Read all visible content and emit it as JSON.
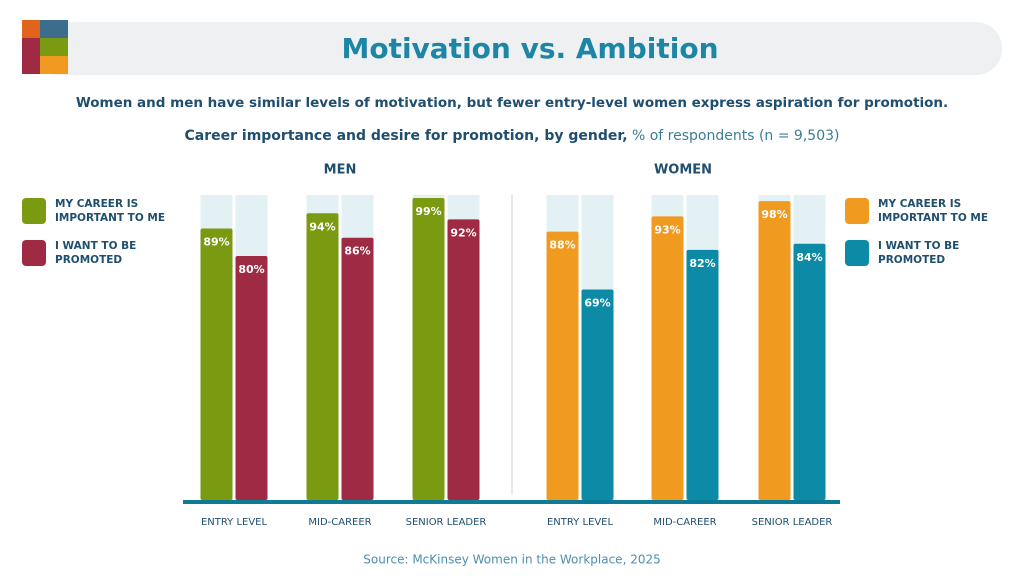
{
  "title": "Motivation vs. Ambition",
  "subtitle": "Women and men have similar levels of motivation, but fewer entry-level women express aspiration for promotion.",
  "caption": {
    "main": "Career importance and desire for promotion, by gender,",
    "sub": "% of respondents (n = 9,503)"
  },
  "source": "Source: McKinsey Women in the Workplace, 2025",
  "chart_data": [
    {
      "type": "bar",
      "title": "MEN",
      "legend": "left",
      "categories": [
        "ENTRY LEVEL",
        "MID-CAREER",
        "SENIOR LEADER"
      ],
      "ylim": [
        0,
        100
      ],
      "series": [
        {
          "name": "MY CAREER IS IMPORTANT TO ME",
          "color": "#7a9a12",
          "values": [
            89,
            94,
            99
          ],
          "value_labels": [
            "89%",
            "94%",
            "99%"
          ]
        },
        {
          "name": "I WANT TO BE PROMOTED",
          "color": "#9e2a43",
          "values": [
            80,
            86,
            92
          ],
          "value_labels": [
            "80%",
            "86%",
            "92%"
          ]
        }
      ]
    },
    {
      "type": "bar",
      "title": "WOMEN",
      "legend": "right",
      "categories": [
        "ENTRY LEVEL",
        "MID-CAREER",
        "SENIOR LEADER"
      ],
      "ylim": [
        0,
        100
      ],
      "series": [
        {
          "name": "MY CAREER IS IMPORTANT TO ME",
          "color": "#f19a20",
          "values": [
            88,
            93,
            98
          ],
          "value_labels": [
            "88%",
            "93%",
            "98%"
          ]
        },
        {
          "name": "I WANT TO BE PROMOTED",
          "color": "#0c8aa6",
          "values": [
            69,
            82,
            84
          ],
          "value_labels": [
            "69%",
            "82%",
            "84%"
          ]
        }
      ]
    }
  ]
}
